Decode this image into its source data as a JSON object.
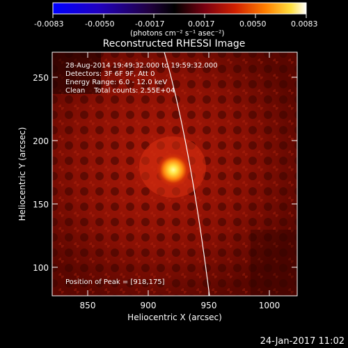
{
  "colorbar": {
    "tick_labels": [
      "-0.0083",
      "-0.0050",
      "-0.0017",
      "0.0017",
      "0.0050",
      "0.0083"
    ],
    "units_label": "(photons cm⁻² s⁻¹ asec⁻²)"
  },
  "plot": {
    "title": "Reconstructed RHESSI Image",
    "info_lines": [
      "28-Aug-2014 19:49:32.000 to 19:59:32.000",
      "Detectors: 3F 6F 9F, Att 0",
      "Energy Range: 6.0 - 12.0 keV",
      "Clean    Total counts: 2.55E+04"
    ],
    "peak_text": "Position of Peak = [918,175]",
    "x_label": "Heliocentric X (arcsec)",
    "y_label": "Heliocentric Y (arcsec)",
    "x_ticks": [
      "850",
      "900",
      "950",
      "1000"
    ],
    "y_ticks": [
      "100",
      "150",
      "200",
      "250"
    ]
  },
  "footer": {
    "timestamp": "24-Jan-2017 11:02"
  },
  "colors": {
    "background": "#000000",
    "plot_background": "#6a0800",
    "source_core": "#ffff60",
    "limb_line": "#ffffff"
  }
}
